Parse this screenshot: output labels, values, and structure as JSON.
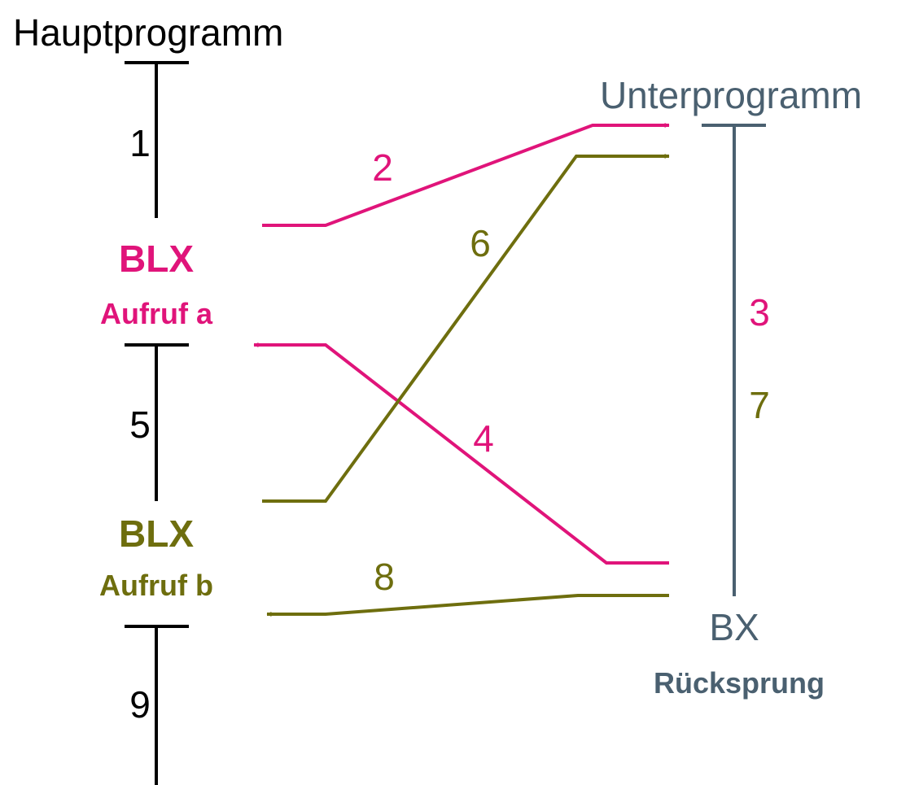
{
  "colors": {
    "main": "#000000",
    "sub": "#4a6070",
    "call_a": "#e0147a",
    "call_b": "#6e6e0e"
  },
  "main_program": {
    "title": "Hauptprogramm",
    "step1": "1",
    "call_a_instr": "BLX",
    "call_a_label": "Aufruf a",
    "step5": "5",
    "call_b_instr": "BLX",
    "call_b_label": "Aufruf b",
    "step9": "9"
  },
  "subroutine": {
    "title": "Unterprogramm",
    "step3": "3",
    "step7": "7",
    "return_instr": "BX",
    "return_label": "Rücksprung"
  },
  "arrows": {
    "jump_a": "2",
    "return_a": "4",
    "jump_b": "6",
    "return_b": "8"
  }
}
